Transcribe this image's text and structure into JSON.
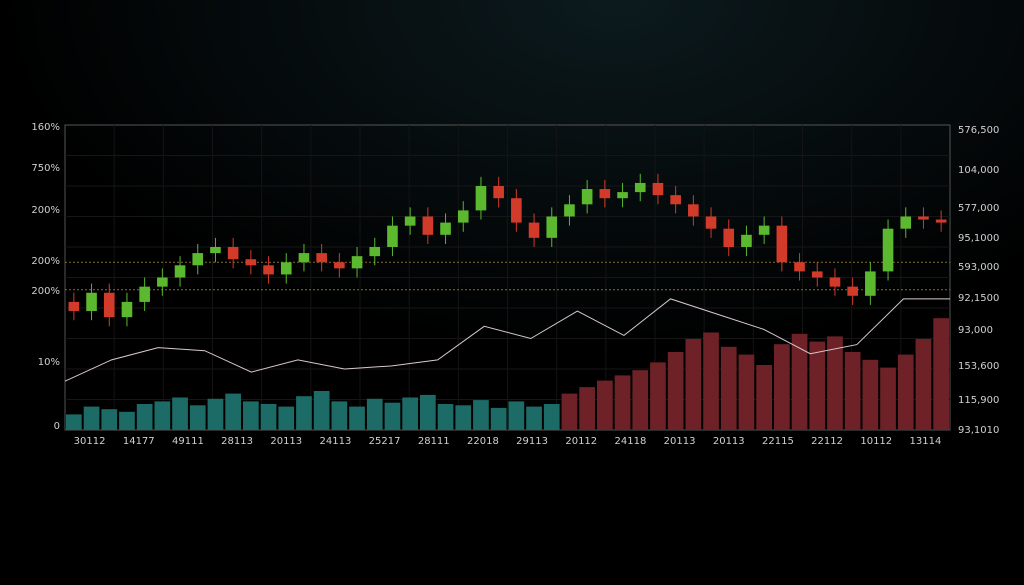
{
  "chart_data": {
    "type": "candlestick",
    "left_axis_labels": [
      "160%",
      "750%",
      "200%",
      "200%",
      "200%",
      "10%",
      "0"
    ],
    "right_axis_labels": [
      "576,500",
      "104,000",
      "577,000",
      "95,1000",
      "593,000",
      "92,1500",
      "93,000",
      "153,600",
      "115,900",
      "93,1010"
    ],
    "x_labels": [
      "30112",
      "14177",
      "49111",
      "28113",
      "20113",
      "24113",
      "25217",
      "28111",
      "22018",
      "29113",
      "20112",
      "24118",
      "20113",
      "20113",
      "22115",
      "22112",
      "10112",
      "13114"
    ],
    "ylim": [
      0,
      100
    ],
    "up_color": "#5cb82e",
    "down_color": "#d23a2a",
    "open": [
      42,
      39,
      45,
      37,
      42,
      47,
      50,
      54,
      58,
      60,
      56,
      54,
      51,
      55,
      58,
      55,
      53,
      57,
      60,
      67,
      70,
      64,
      68,
      72,
      80,
      76,
      68,
      63,
      70,
      74,
      79,
      76,
      78,
      81,
      77,
      74,
      70,
      66,
      60,
      64,
      67,
      55,
      52,
      50,
      47,
      44,
      52,
      66,
      70,
      69
    ],
    "high": [
      45,
      48,
      48,
      45,
      50,
      53,
      57,
      61,
      63,
      63,
      59,
      57,
      58,
      61,
      61,
      58,
      60,
      63,
      70,
      73,
      73,
      71,
      75,
      83,
      83,
      79,
      71,
      73,
      77,
      82,
      82,
      81,
      84,
      84,
      80,
      77,
      73,
      69,
      67,
      70,
      70,
      58,
      55,
      53,
      50,
      55,
      69,
      73,
      73,
      72
    ],
    "low": [
      36,
      36,
      34,
      34,
      39,
      44,
      47,
      51,
      55,
      53,
      51,
      48,
      48,
      52,
      52,
      50,
      50,
      54,
      57,
      64,
      61,
      61,
      65,
      69,
      73,
      65,
      60,
      60,
      67,
      71,
      73,
      73,
      75,
      74,
      71,
      67,
      63,
      57,
      57,
      61,
      52,
      49,
      47,
      44,
      41,
      41,
      49,
      63,
      66,
      65
    ],
    "close": [
      39,
      45,
      37,
      42,
      47,
      50,
      54,
      58,
      60,
      56,
      54,
      51,
      55,
      58,
      55,
      53,
      57,
      60,
      67,
      70,
      64,
      68,
      72,
      80,
      76,
      68,
      63,
      70,
      74,
      79,
      76,
      78,
      81,
      77,
      74,
      70,
      66,
      60,
      64,
      67,
      55,
      52,
      50,
      47,
      44,
      52,
      66,
      70,
      69,
      68
    ],
    "reference_lines": [
      55,
      46
    ],
    "reference_color": "#8a6a2a",
    "line": {
      "color": "#d8c8d0",
      "values": [
        16,
        23,
        27,
        26,
        19,
        23,
        20,
        21,
        23,
        34,
        30,
        39,
        31,
        43,
        38,
        33,
        25,
        28,
        43,
        43
      ]
    },
    "volume_ylim": [
      0,
      100
    ],
    "volume": [
      {
        "color": "#1d6b66",
        "values": [
          12,
          18,
          16,
          14,
          20,
          22,
          25,
          19,
          24,
          28,
          22,
          20,
          18,
          26,
          30,
          22,
          18,
          24,
          21,
          25,
          27,
          20,
          19,
          23,
          17,
          22,
          18,
          20,
          null,
          null,
          null,
          null,
          null,
          null,
          null,
          null,
          null,
          null,
          null,
          null,
          null,
          null,
          null,
          null,
          null,
          null,
          null,
          null,
          null,
          null
        ]
      },
      {
        "color": "#6e2228",
        "values": [
          null,
          null,
          null,
          null,
          null,
          null,
          null,
          null,
          null,
          null,
          null,
          null,
          null,
          null,
          null,
          null,
          null,
          null,
          null,
          null,
          null,
          null,
          null,
          null,
          null,
          null,
          null,
          null,
          28,
          33,
          38,
          42,
          46,
          52,
          60,
          70,
          75,
          64,
          58,
          50,
          66,
          74,
          68,
          72,
          60,
          54,
          48,
          58,
          70,
          86
        ]
      }
    ],
    "grid": true
  }
}
